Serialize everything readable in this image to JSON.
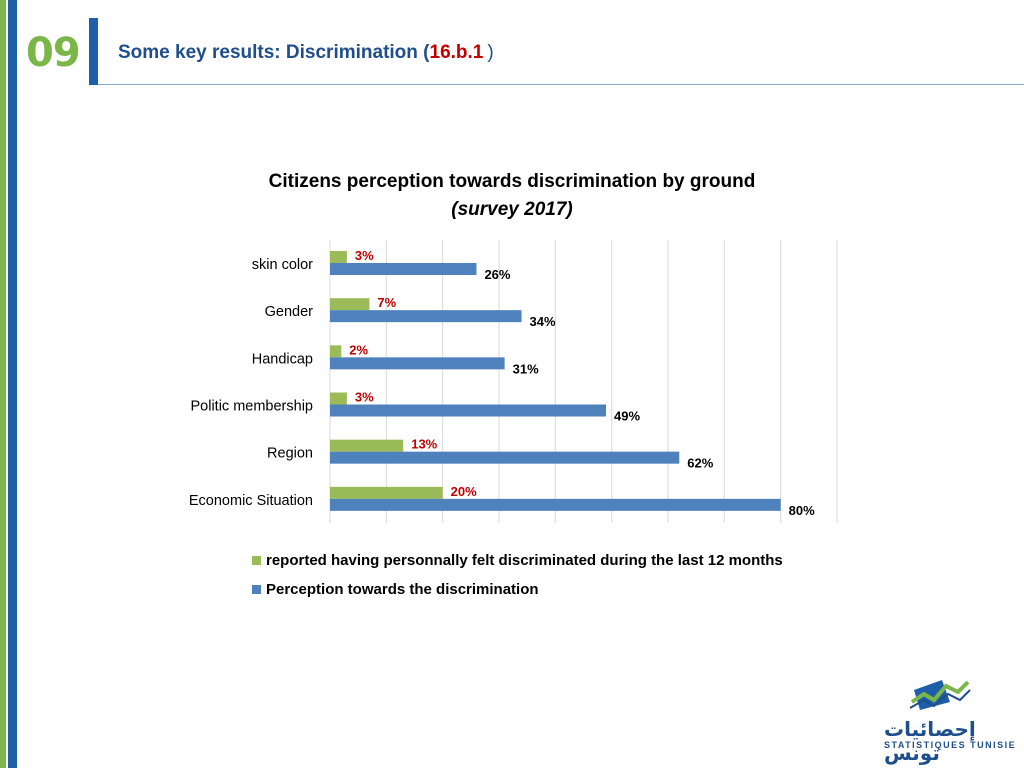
{
  "header": {
    "slide_number": "09",
    "title_prefix": "Some key results: Discrimination (",
    "title_code": "16.b.1",
    "title_suffix": ")"
  },
  "colors": {
    "accent_green": "#7ab648",
    "accent_blue": "#1f5fa8",
    "series_green": "#9bbb59",
    "series_blue": "#4f81bd",
    "label_red": "#c00000"
  },
  "chart_data": {
    "type": "bar",
    "orientation": "horizontal",
    "title": "Citizens perception towards discrimination by ground",
    "subtitle": "(survey 2017)",
    "categories": [
      "skin color",
      "Gender",
      "Handicap",
      "Politic membership",
      "Region",
      "Economic Situation"
    ],
    "series": [
      {
        "name": "reported having personnally felt discriminated during the last 12 months",
        "values": [
          3,
          7,
          2,
          3,
          13,
          20
        ],
        "labels": [
          "3%",
          "7%",
          "2%",
          "3%",
          "13%",
          "20%"
        ]
      },
      {
        "name": "Perception towards the discrimination",
        "values": [
          26,
          34,
          31,
          49,
          62,
          80
        ],
        "labels": [
          "26%",
          "34%",
          "31%",
          "49%",
          "62%",
          "80%"
        ]
      }
    ],
    "xlim": [
      0,
      90
    ],
    "grid": true,
    "legend_position": "bottom"
  },
  "logo": {
    "arabic_text": "إحصائيات تونس",
    "french_text": "STATISTIQUES TUNISIE"
  }
}
